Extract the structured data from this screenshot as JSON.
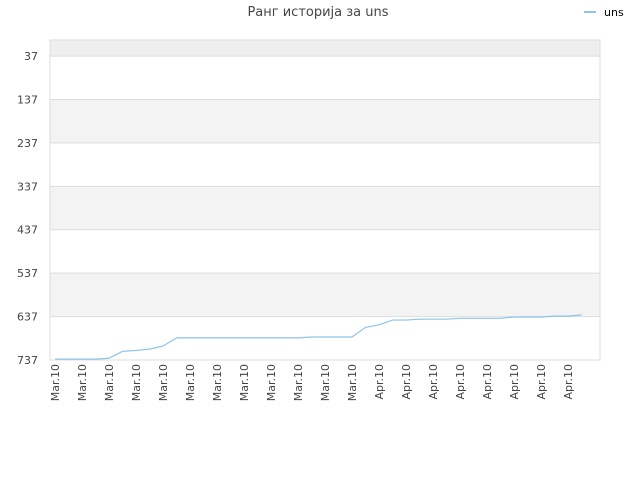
{
  "chart_data": {
    "type": "line",
    "title": "Ранг историја за uns",
    "categories": [
      "Mar.10",
      null,
      "Mar.10",
      null,
      "Mar.10",
      null,
      "Mar.10",
      null,
      "Mar.10",
      null,
      "Mar.10",
      null,
      "Mar.10",
      null,
      "Mar.10",
      null,
      "Mar.10",
      null,
      "Mar.10",
      null,
      "Mar.10",
      null,
      "Mar.10",
      null,
      "Apr.10",
      null,
      "Apr.10",
      null,
      "Apr.10",
      null,
      "Apr.10",
      null,
      "Apr.10",
      null,
      "Apr.10",
      null,
      "Apr.10",
      null,
      "Apr.10",
      null
    ],
    "series": [
      {
        "name": "uns",
        "color": "#8ec3ea",
        "values": [
          735,
          735,
          735,
          735,
          733,
          717,
          715,
          712,
          705,
          686,
          686,
          686,
          686,
          686,
          686,
          686,
          686,
          686,
          686,
          684,
          684,
          684,
          684,
          662,
          656,
          645,
          645,
          643,
          643,
          643,
          641,
          641,
          641,
          641,
          638,
          638,
          638,
          636,
          636,
          633
        ]
      }
    ],
    "ylim": [
      737,
      0
    ],
    "yticks": [
      37,
      137,
      237,
      337,
      437,
      537,
      637,
      737
    ],
    "grid": true,
    "legend": "top-right"
  }
}
